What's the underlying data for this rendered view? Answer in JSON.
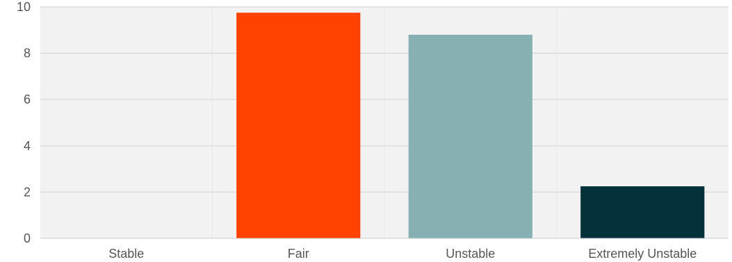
{
  "chart_data": {
    "type": "bar",
    "title": "",
    "xlabel": "",
    "ylabel": "",
    "categories": [
      "Stable",
      "Fair",
      "Unstable",
      "Extremely Unstable"
    ],
    "values": [
      0,
      9.75,
      8.8,
      2.25
    ],
    "bar_colors": [
      "#f2f2f2",
      "#ff4200",
      "#86b0b2",
      "#04323a"
    ],
    "ylim": [
      0,
      10
    ],
    "yticks": [
      "0",
      "2",
      "4",
      "6",
      "8",
      "10"
    ],
    "grid": true,
    "legend": "none",
    "plot_background": "#f2f2f2",
    "grid_color": "#d7d7d7",
    "tick_label_color": "#555555"
  }
}
